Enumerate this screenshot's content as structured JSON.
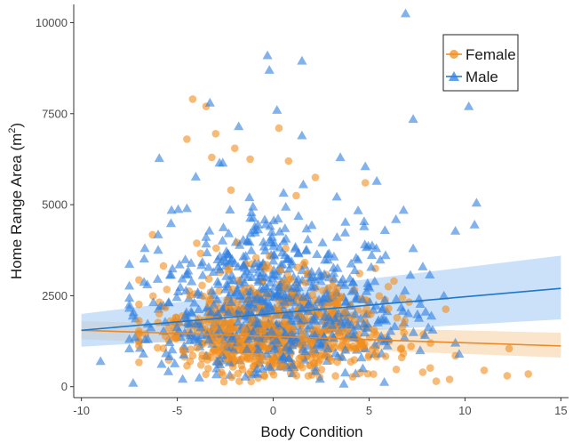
{
  "chart_data": {
    "type": "scatter",
    "title": "",
    "xlabel": "Body Condition",
    "ylabel_main": "Home Range Area (m",
    "ylabel_sup": "2",
    "ylabel_close": ")",
    "xlim": [
      -10.4,
      15.4
    ],
    "ylim": [
      -300,
      10500
    ],
    "xticks": [
      -10,
      -5,
      0,
      5,
      10,
      15
    ],
    "xtick_labels": [
      "-10",
      "-5",
      "0",
      "5",
      "10",
      "15"
    ],
    "yticks": [
      0,
      2500,
      5000,
      7500,
      10000
    ],
    "ytick_labels": [
      "0",
      "2500",
      "5000",
      "7500",
      "10000"
    ],
    "grid": false,
    "legend_position": "top-right",
    "series": [
      {
        "name": "Female",
        "marker": "circle",
        "color": "#f28e1c",
        "fit_line": {
          "x": [
            -10,
            15
          ],
          "y": [
            1550,
            1120
          ]
        },
        "ci_band": {
          "x": [
            -10,
            15
          ],
          "upper": [
            1800,
            1480
          ],
          "lower": [
            1300,
            800
          ]
        },
        "highlight_points": [
          {
            "x": -4.2,
            "y": 7900
          },
          {
            "x": -3.5,
            "y": 7700
          },
          {
            "x": -4.5,
            "y": 6800
          },
          {
            "x": -3.0,
            "y": 6950
          },
          {
            "x": -2.0,
            "y": 6550
          },
          {
            "x": 0.3,
            "y": 7100
          },
          {
            "x": -3.2,
            "y": 6300
          },
          {
            "x": -1.2,
            "y": 6250
          },
          {
            "x": 0.8,
            "y": 6200
          },
          {
            "x": 2.2,
            "y": 5750
          },
          {
            "x": 4.8,
            "y": 5600
          },
          {
            "x": -2.2,
            "y": 5400
          },
          {
            "x": 1.2,
            "y": 5250
          },
          {
            "x": 6.3,
            "y": 2900
          },
          {
            "x": 6.0,
            "y": 2750
          },
          {
            "x": 8.2,
            "y": 1200
          },
          {
            "x": 9.5,
            "y": 850
          },
          {
            "x": 12.3,
            "y": 1050
          },
          {
            "x": 12.2,
            "y": 300
          },
          {
            "x": 13.3,
            "y": 350
          },
          {
            "x": 11.0,
            "y": 450
          },
          {
            "x": 8.5,
            "y": 150
          },
          {
            "x": 7.8,
            "y": 400
          },
          {
            "x": 9.2,
            "y": 200
          }
        ]
      },
      {
        "name": "Male",
        "marker": "triangle",
        "color": "#2e7fe0",
        "fit_line": {
          "x": [
            -10,
            15
          ],
          "y": [
            1550,
            2700
          ]
        },
        "ci_band": {
          "x": [
            -10,
            15
          ],
          "upper": [
            2000,
            3600
          ],
          "lower": [
            1100,
            1850
          ]
        },
        "highlight_points": [
          {
            "x": 6.9,
            "y": 10250
          },
          {
            "x": -0.3,
            "y": 9100
          },
          {
            "x": -0.2,
            "y": 8700
          },
          {
            "x": 1.5,
            "y": 8950
          },
          {
            "x": -3.3,
            "y": 7800
          },
          {
            "x": 0.2,
            "y": 7600
          },
          {
            "x": 7.3,
            "y": 7350
          },
          {
            "x": 10.2,
            "y": 7700
          },
          {
            "x": 1.5,
            "y": 6900
          },
          {
            "x": -1.8,
            "y": 7150
          },
          {
            "x": -2.8,
            "y": 6150
          },
          {
            "x": 3.5,
            "y": 6300
          },
          {
            "x": 4.8,
            "y": 6050
          },
          {
            "x": 10.6,
            "y": 5050
          },
          {
            "x": 10.5,
            "y": 4450
          },
          {
            "x": 6.8,
            "y": 4850
          },
          {
            "x": 6.4,
            "y": 4600
          },
          {
            "x": 7.3,
            "y": 3800
          },
          {
            "x": 7.8,
            "y": 3300
          },
          {
            "x": 8.9,
            "y": 2500
          },
          {
            "x": -9.0,
            "y": 700
          },
          {
            "x": -7.3,
            "y": 100
          },
          {
            "x": -5.3,
            "y": 4850
          },
          {
            "x": -4.5,
            "y": 4900
          },
          {
            "x": 5.4,
            "y": 5650
          },
          {
            "x": 9.7,
            "y": 900
          }
        ]
      }
    ],
    "cluster_points_per_series": {
      "Female": 680,
      "Male": 760
    }
  },
  "colors": {
    "female": "#f28e1c",
    "female_line": "#e8892a",
    "female_band": "#f6d3a8",
    "male": "#2e7fe0",
    "male_line": "#1f77c9",
    "male_band": "#a9cdf6",
    "axis": "#333333",
    "text": "#1a1a1a"
  }
}
